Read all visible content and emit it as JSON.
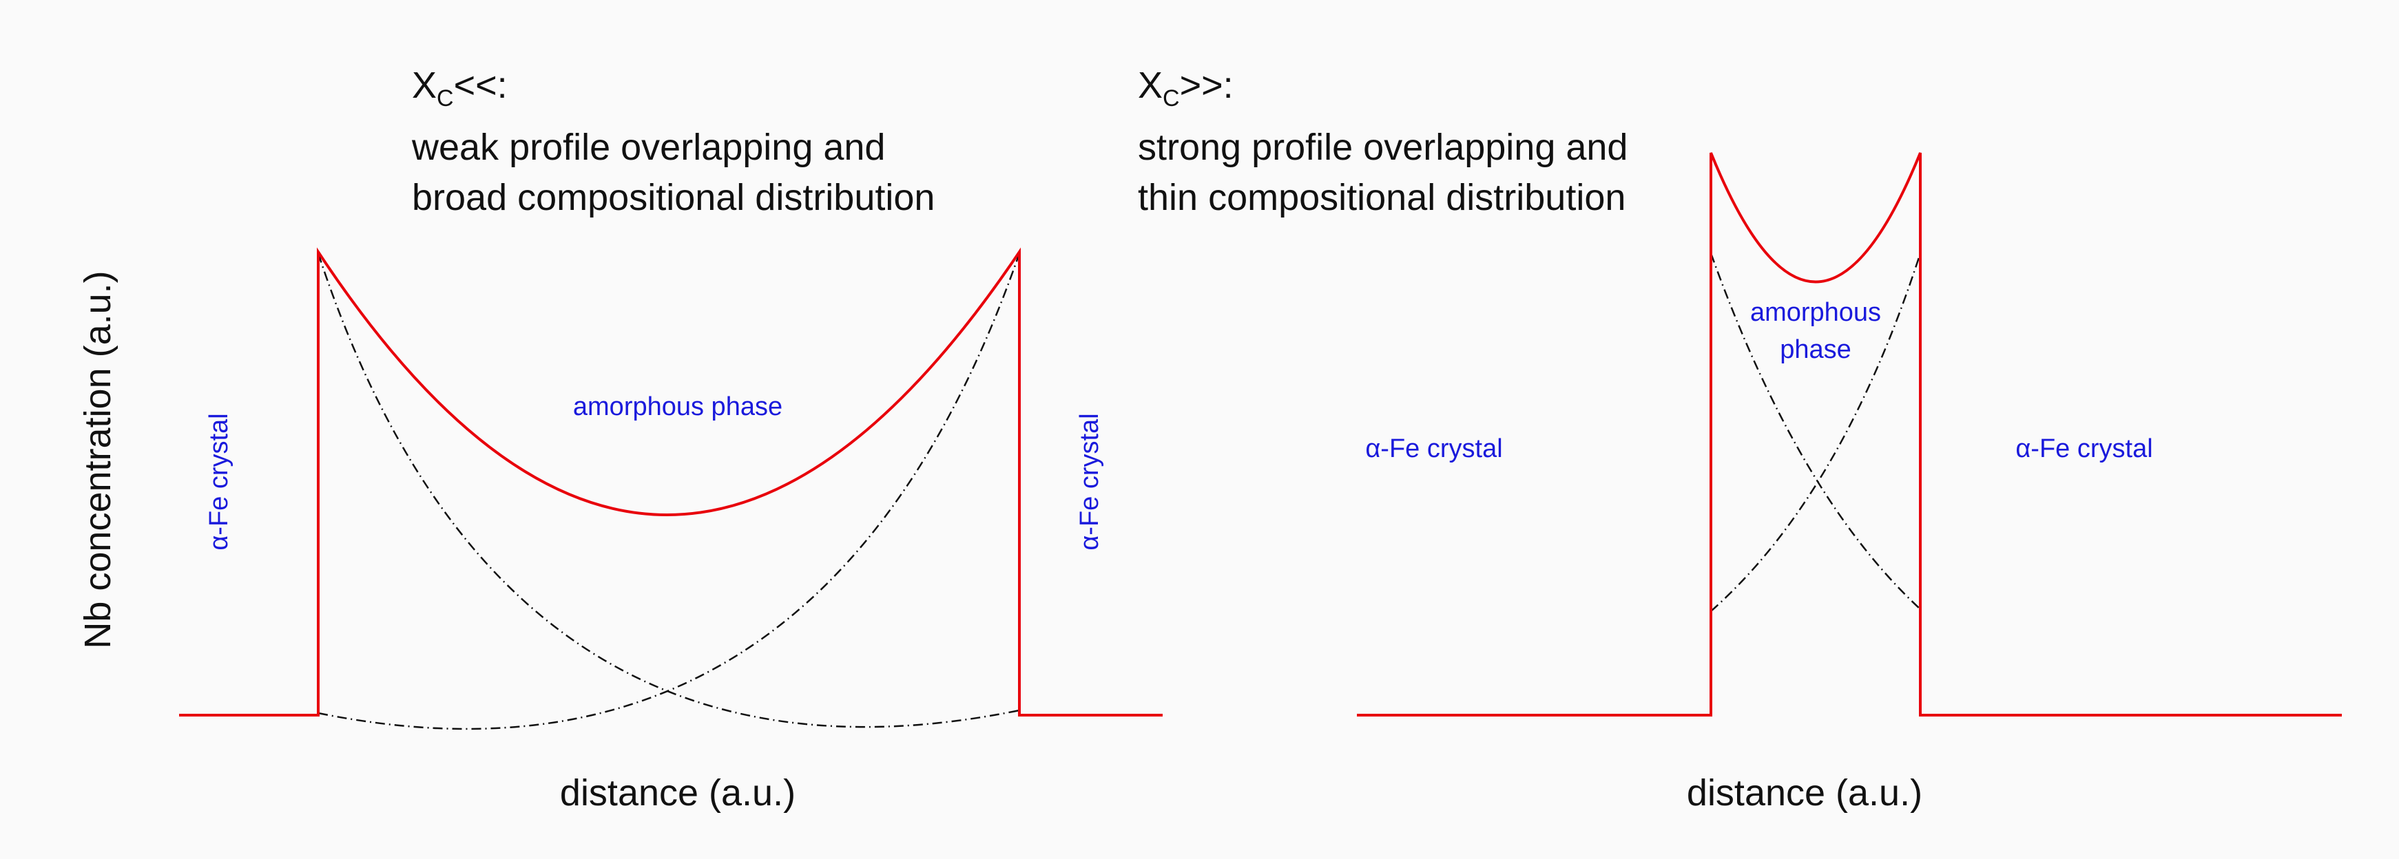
{
  "colors": {
    "profile": "#e8000b",
    "component": "#111111",
    "phase_label": "#1a1adc",
    "text": "#111111",
    "background": "#fafafa"
  },
  "y_axis_label": "Nb concentration (a.u.)",
  "panels": [
    {
      "id": "left",
      "heading_symbol": "X",
      "heading_subscript": "C",
      "heading_suffix": "<<:",
      "heading_line1": "weak profile overlapping and",
      "heading_line2": "broad compositional distribution",
      "x_axis_label": "distance (a.u.)",
      "left_crystal_label": "α-Fe crystal",
      "right_crystal_label": "α-Fe crystal",
      "phase_label": "amorphous phase"
    },
    {
      "id": "right",
      "heading_symbol": "X",
      "heading_subscript": "C",
      "heading_suffix": ">>:",
      "heading_line1": "strong profile overlapping and",
      "heading_line2": "thin compositional distribution",
      "x_axis_label": "distance (a.u.)",
      "left_crystal_label": "α-Fe crystal",
      "right_crystal_label": "α-Fe crystal",
      "phase_label_line1": "amorphous",
      "phase_label_line2": "phase"
    }
  ]
}
